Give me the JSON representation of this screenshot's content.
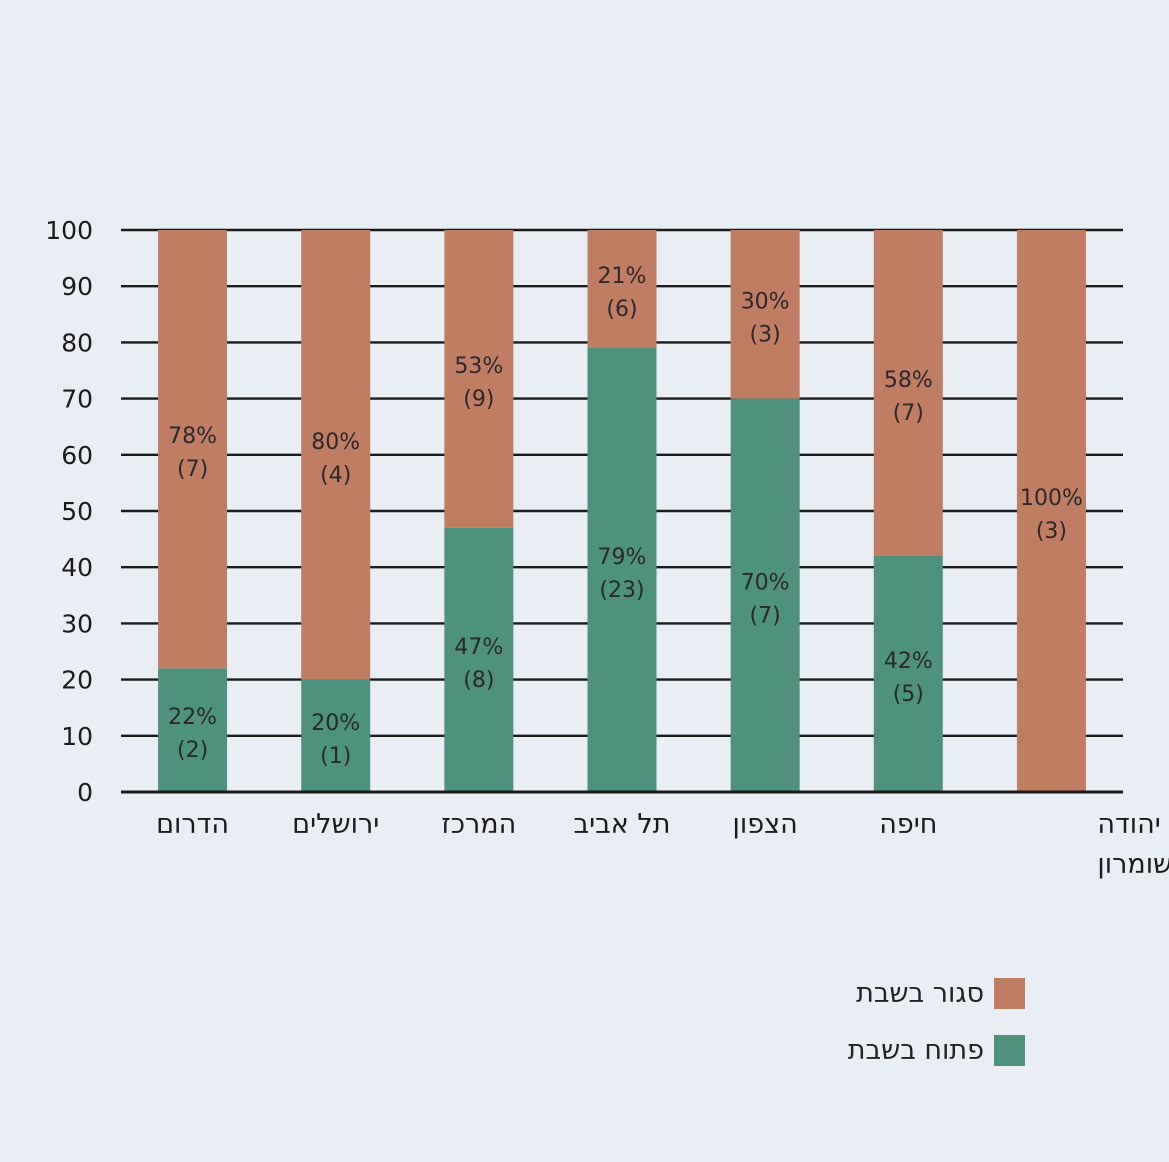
{
  "chart_data": {
    "type": "bar",
    "stacked": true,
    "categories": [
      "הדרום",
      "ירושלים",
      "המרכז",
      "תל אביב",
      "הצפון",
      "חיפה",
      "יהודה ושומרון"
    ],
    "category_lines": [
      [
        "הדרום"
      ],
      [
        "ירושלים"
      ],
      [
        "המרכז"
      ],
      [
        "תל אביב"
      ],
      [
        "הצפון"
      ],
      [
        "חיפה"
      ],
      [
        "יהודה",
        "ושומרון"
      ]
    ],
    "series": [
      {
        "name": "פתוח בשבת",
        "color": "#4e927e",
        "values": [
          22,
          20,
          47,
          79,
          70,
          42,
          0
        ],
        "labels": [
          "22%",
          "20%",
          "47%",
          "79%",
          "70%",
          "42%",
          ""
        ],
        "counts": [
          "(2)",
          "(1)",
          "(8)",
          "(23)",
          "(7)",
          "(5)",
          ""
        ]
      },
      {
        "name": "סגור בשבת",
        "color": "#bf7d62",
        "values": [
          78,
          80,
          53,
          21,
          30,
          58,
          100
        ],
        "labels": [
          "78%",
          "80%",
          "53%",
          "21%",
          "30%",
          "58%",
          "100%"
        ],
        "counts": [
          "(7)",
          "(4)",
          "(9)",
          "(6)",
          "(3)",
          "(7)",
          "(3)"
        ]
      }
    ],
    "ylim": [
      0,
      100
    ],
    "yticks": [
      0,
      10,
      20,
      30,
      40,
      50,
      60,
      70,
      80,
      90,
      100
    ],
    "grid": true,
    "legend_placement": "bottom-right"
  }
}
